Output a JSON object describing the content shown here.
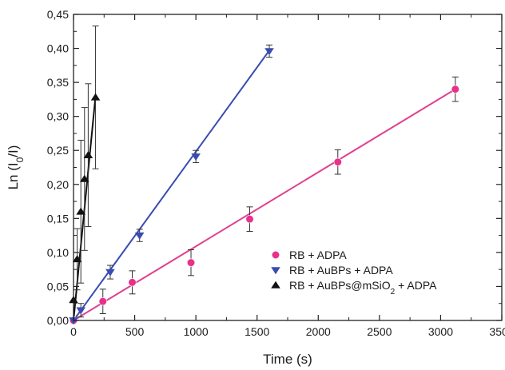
{
  "chart_data": {
    "type": "scatter",
    "xlabel": "Time (s)",
    "ylabel": "Ln (I",
    "ylabel_sub": "0",
    "ylabel_tail": "/I)",
    "xlim": [
      0,
      3500
    ],
    "ylim": [
      0,
      0.45
    ],
    "xticks": [
      0,
      500,
      1000,
      1500,
      2000,
      2500,
      3000,
      3500
    ],
    "xtick_labels": [
      "0",
      "500",
      "1000",
      "1500",
      "2000",
      "2500",
      "3000",
      "3500"
    ],
    "yticks": [
      0,
      0.05,
      0.1,
      0.15,
      0.2,
      0.25,
      0.3,
      0.35,
      0.4,
      0.45
    ],
    "ytick_labels": [
      "0,00",
      "0,05",
      "0,10",
      "0,15",
      "0,20",
      "0,25",
      "0,30",
      "0,35",
      "0,40",
      "0,45"
    ],
    "grid": false,
    "legend_position": "lower-right",
    "series": [
      {
        "name": "RB + ADPA",
        "legend_parts": [
          "RB + ADPA"
        ],
        "marker": "circle",
        "color": "#e8318a",
        "line_color": "#e0408f",
        "fit": [
          [
            0,
            0
          ],
          [
            3120,
            0.34
          ]
        ],
        "points": [
          {
            "x": 0,
            "y": 0.0,
            "err": 0.0
          },
          {
            "x": 240,
            "y": 0.028,
            "err": 0.018
          },
          {
            "x": 480,
            "y": 0.056,
            "err": 0.017
          },
          {
            "x": 960,
            "y": 0.085,
            "err": 0.019
          },
          {
            "x": 1440,
            "y": 0.149,
            "err": 0.018
          },
          {
            "x": 2160,
            "y": 0.233,
            "err": 0.018
          },
          {
            "x": 3120,
            "y": 0.34,
            "err": 0.018
          }
        ]
      },
      {
        "name": "RB + AuBPs + ADPA",
        "legend_parts": [
          "RB + AuBPs + ADPA"
        ],
        "marker": "triangle-down",
        "color": "#3a4cb0",
        "line_color": "#3a4cb0",
        "fit": [
          [
            0,
            0
          ],
          [
            1600,
            0.397
          ]
        ],
        "points": [
          {
            "x": 0,
            "y": 0.0,
            "err": 0.0
          },
          {
            "x": 60,
            "y": 0.015,
            "err": 0.01
          },
          {
            "x": 300,
            "y": 0.071,
            "err": 0.01
          },
          {
            "x": 540,
            "y": 0.125,
            "err": 0.009
          },
          {
            "x": 1000,
            "y": 0.241,
            "err": 0.009
          },
          {
            "x": 1600,
            "y": 0.396,
            "err": 0.009
          }
        ]
      },
      {
        "name": "RB + AuBPs@mSiO2 + ADPA",
        "legend_parts": [
          "RB + AuBPs@mSiO",
          "2",
          " + ADPA"
        ],
        "marker": "triangle-up",
        "color": "#111111",
        "line_color": "#111111",
        "fit": [
          [
            0,
            0
          ],
          [
            180,
            0.33
          ]
        ],
        "points": [
          {
            "x": 0,
            "y": 0.03,
            "err": 0.0
          },
          {
            "x": 30,
            "y": 0.09,
            "err": 0.045
          },
          {
            "x": 60,
            "y": 0.16,
            "err": 0.105
          },
          {
            "x": 90,
            "y": 0.208,
            "err": 0.105
          },
          {
            "x": 120,
            "y": 0.243,
            "err": 0.105
          },
          {
            "x": 180,
            "y": 0.328,
            "err": 0.105
          }
        ]
      }
    ]
  }
}
